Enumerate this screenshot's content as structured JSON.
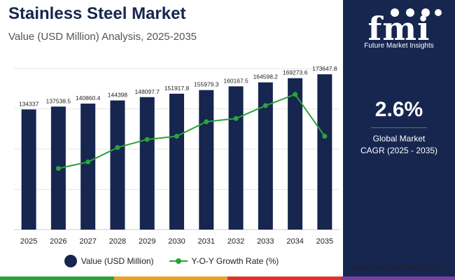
{
  "header": {
    "title": "Stainless Steel Market",
    "subtitle": "Value (USD Million) Analysis, 2025-2035"
  },
  "chart_data": {
    "type": "bar",
    "categories": [
      "2025",
      "2026",
      "2027",
      "2028",
      "2029",
      "2030",
      "2031",
      "2032",
      "2033",
      "2034",
      "2035"
    ],
    "series": [
      {
        "name": "Value (USD Million)",
        "type": "bar",
        "values": [
          134337,
          137538.5,
          140860.4,
          144398,
          148097.7,
          151917.8,
          155979.3,
          160167.5,
          164598.2,
          169273.6,
          173647.8
        ],
        "labels": [
          "134337",
          "137538.5",
          "140860.4",
          "144398",
          "148097.7",
          "151917.8",
          "155979.3",
          "160167.5",
          "164598.2",
          "169273.6",
          "173647.8"
        ]
      },
      {
        "name": "Y-O-Y Growth Rate (%)",
        "type": "line",
        "values": [
          null,
          2.38,
          2.42,
          2.51,
          2.56,
          2.58,
          2.67,
          2.69,
          2.77,
          2.84,
          2.58
        ]
      }
    ],
    "ylim": [
      0,
      180000
    ],
    "y2lim": [
      2.0,
      3.0
    ],
    "legend": "bottom"
  },
  "legend": {
    "bar_label": "Value (USD Million)",
    "line_label": "Y-O-Y Growth Rate (%)"
  },
  "sidebar": {
    "logo_text": "fmi",
    "logo_tagline": "Future Market Insights",
    "cagr_value": "2.6%",
    "cagr_label_line1": "Global Market",
    "cagr_label_line2": "CAGR (2025 - 2035)"
  },
  "footer": {
    "website": "www.futuremarketinsights.com"
  },
  "colors": {
    "bar": "#16264f",
    "line": "#2aa33a",
    "panel": "#16264f",
    "stripe": [
      "#2aa33a",
      "#f0a020",
      "#e2332b",
      "#7a3fa0"
    ]
  }
}
